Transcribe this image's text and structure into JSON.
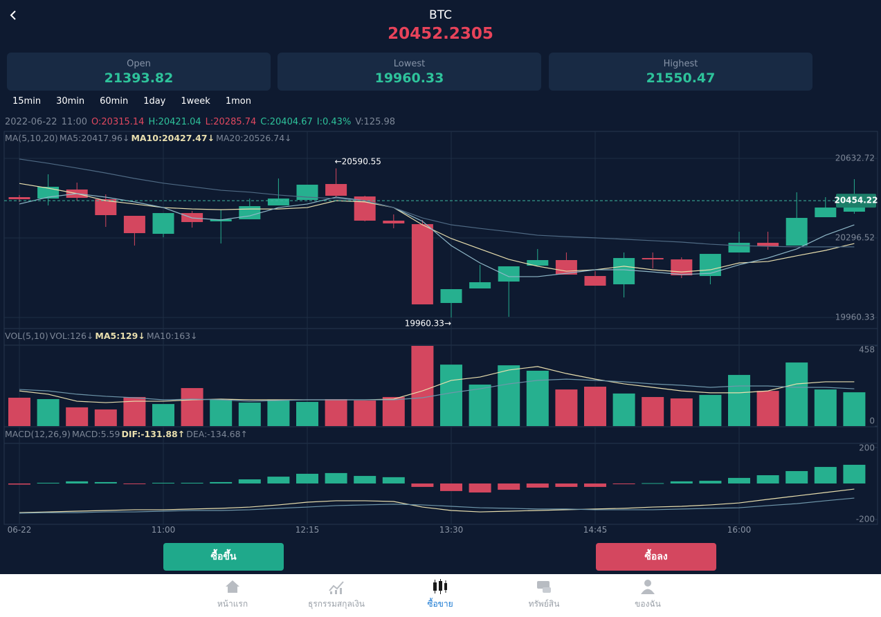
{
  "header": {
    "title": "BTC",
    "price": 20452.2305
  },
  "stats": [
    {
      "label": "Open",
      "value": 21393.82
    },
    {
      "label": "Lowest",
      "value": 19960.33
    },
    {
      "label": "Highest",
      "value": 21550.47
    }
  ],
  "intervals": [
    "15min",
    "30min",
    "60min",
    "1day",
    "1week",
    "1mon"
  ],
  "info": [
    "2022-06-22",
    "11:00",
    "O:20315.14",
    "H:20421.04",
    "L:20285.74",
    "C:20404.67",
    "I:0.43%",
    "V:125.98"
  ],
  "chart_data": [
    {
      "type": "candlestick",
      "legend": [
        "MA(5,10,20)",
        "MA5:20417.96↓",
        "MA10:20427.47↓",
        "MA20:20526.74↓"
      ],
      "categories": [
        "06-22",
        null,
        null,
        null,
        null,
        "11:00",
        null,
        null,
        null,
        null,
        "12:15",
        null,
        null,
        null,
        null,
        "13:30",
        null,
        null,
        null,
        null,
        "14:45",
        null,
        null,
        null,
        null,
        "16:00",
        null,
        null,
        null,
        null
      ],
      "open": [
        20469.0,
        20463.1,
        20501.2,
        20460.2,
        20390.1,
        20314.0,
        20401.7,
        20366.7,
        20375.4,
        20433.9,
        20457.3,
        20524.5,
        20471.9,
        20369.6,
        20354.9,
        20021.7,
        20083.1,
        20112.3,
        20179.6,
        20203.0,
        20135.7,
        20100.6,
        20211.7,
        20205.9,
        20135.7,
        20235.1,
        20276.0,
        20264.3,
        20384.2,
        20407.6
      ],
      "high": [
        20477.8,
        20565.5,
        20530.4,
        20480.7,
        20390.1,
        20401.7,
        20410.5,
        20416.4,
        20463.1,
        20547.9,
        20521.6,
        20590.55,
        20474.8,
        20395.9,
        20372.5,
        20080.2,
        20182.5,
        20176.6,
        20249.7,
        20235.1,
        20156.2,
        20235.1,
        20235.1,
        20214.6,
        20229.2,
        20322.8,
        20322.8,
        20489.5,
        20469.0,
        20545.0
      ],
      "low": [
        20448.5,
        20433.9,
        20454.4,
        20343.3,
        20264.3,
        20299.4,
        20340.3,
        20273.1,
        20375.4,
        20433.9,
        20457.3,
        20469.0,
        20366.7,
        20337.4,
        20015.8,
        19960.33,
        20083.1,
        19963.2,
        20179.6,
        20141.6,
        20094.8,
        20045.1,
        20167.9,
        20127.0,
        20100.6,
        20235.1,
        20246.8,
        20264.3,
        20384.2,
        20398.8
      ],
      "close": [
        20460.2,
        20512.8,
        20466.1,
        20393.0,
        20316.9,
        20401.7,
        20363.7,
        20375.4,
        20431.0,
        20463.1,
        20521.6,
        20474.8,
        20369.6,
        20357.9,
        20015.8,
        20080.2,
        20109.4,
        20176.6,
        20203.0,
        20141.6,
        20094.8,
        20211.7,
        20205.9,
        20138.6,
        20229.2,
        20276.0,
        20261.4,
        20381.3,
        20425.1,
        20454.22
      ],
      "up_color": "#26b08f",
      "down_color": "#d4475f",
      "series": [
        {
          "color": "#e9dfae",
          "values": [
            20527,
            20507,
            20484,
            20454,
            20440,
            20425,
            20419,
            20416,
            20419,
            20419,
            20425,
            20454,
            20449,
            20425,
            20352,
            20294,
            20250,
            20206,
            20177,
            20156,
            20162,
            20177,
            20162,
            20153,
            20162,
            20191,
            20197,
            20221,
            20244,
            20273
          ]
        },
        {
          "color": "#8fb8c8",
          "values": [
            20440,
            20469,
            20484,
            20469,
            20449,
            20425,
            20381,
            20373,
            20390,
            20425,
            20440,
            20469,
            20454,
            20425,
            20367,
            20264,
            20191,
            20133,
            20133,
            20147,
            20162,
            20162,
            20153,
            20142,
            20147,
            20183,
            20212,
            20250,
            20308,
            20352
          ]
        },
        {
          "color": "#4f6a84",
          "values": [
            20630,
            20612,
            20592,
            20571,
            20548,
            20528,
            20513,
            20498,
            20490,
            20478,
            20469,
            20463,
            20454,
            20425,
            20381,
            20352,
            20337,
            20323,
            20308,
            20302,
            20297,
            20291,
            20285,
            20279,
            20270,
            20264,
            20261,
            20259,
            20259,
            20259
          ]
        }
      ],
      "ylim": [
        19913.6,
        20717.5
      ],
      "yticks": [
        19960.33,
        20296.52,
        20632.72
      ],
      "grid": true,
      "last_price": 20454.22,
      "annotations": [
        "←20590.55",
        "19960.33→"
      ]
    },
    {
      "type": "bar",
      "legend": [
        "VOL(5,10)",
        "VOL:126↓",
        "MA5:129↓",
        "MA10:163↓"
      ],
      "values": [
        162,
        154,
        107,
        95,
        166,
        126,
        217,
        150,
        134,
        150,
        138,
        154,
        146,
        166,
        458,
        351,
        237,
        347,
        316,
        209,
        225,
        186,
        166,
        158,
        178,
        292,
        201,
        363,
        209,
        193
      ],
      "series": [
        {
          "color": "#e9dfae",
          "values": [
            201,
            182,
            142,
            134,
            142,
            142,
            150,
            154,
            150,
            150,
            150,
            150,
            150,
            154,
            201,
            261,
            280,
            320,
            340,
            300,
            268,
            241,
            221,
            201,
            190,
            190,
            201,
            241,
            253,
            253
          ]
        },
        {
          "color": "#6f97ab",
          "values": [
            209,
            201,
            182,
            170,
            162,
            150,
            154,
            150,
            142,
            146,
            150,
            150,
            150,
            150,
            162,
            190,
            213,
            241,
            261,
            268,
            261,
            253,
            241,
            233,
            221,
            229,
            229,
            221,
            221,
            213
          ]
        }
      ],
      "ylim": [
        0,
        462
      ],
      "yticks": [
        0,
        458
      ]
    },
    {
      "type": "macd",
      "legend": [
        "MACD(12,26,9)",
        "MACD:5.59",
        "DIF:-131.88↑",
        "DEA:-134.68↑"
      ],
      "values": [
        -6,
        4,
        12,
        8,
        -2,
        4,
        4,
        8,
        23,
        38,
        54,
        58,
        42,
        35,
        -19,
        -42,
        -50,
        -35,
        -23,
        -19,
        -19,
        -4,
        2,
        12,
        15,
        31,
        46,
        69,
        92,
        104
      ],
      "series": [
        {
          "color": "#e9dfae",
          "values": [
            -162,
            -158,
            -154,
            -150,
            -146,
            -146,
            -142,
            -138,
            -131,
            -119,
            -104,
            -96,
            -96,
            -100,
            -131,
            -150,
            -158,
            -154,
            -150,
            -146,
            -142,
            -138,
            -131,
            -127,
            -119,
            -108,
            -88,
            -69,
            -50,
            -31
          ]
        },
        {
          "color": "#6f97ab",
          "values": [
            -165,
            -162,
            -162,
            -158,
            -158,
            -154,
            -150,
            -150,
            -146,
            -138,
            -131,
            -123,
            -119,
            -115,
            -119,
            -127,
            -135,
            -138,
            -142,
            -142,
            -146,
            -146,
            -146,
            -142,
            -138,
            -135,
            -123,
            -112,
            -96,
            -81
          ]
        }
      ],
      "ylim": [
        -227,
        223
      ],
      "yticks": [
        -200,
        200
      ]
    }
  ],
  "buttons": [
    "ซื้อขึ้น",
    "ซื้อลง"
  ],
  "nav": {
    "items": [
      "หน้าแรก",
      "ธุรกรรมสกุลเงิน",
      "ซื้อขาย",
      "ทรัพย์สิน",
      "ของฉัน"
    ],
    "active": 2
  }
}
